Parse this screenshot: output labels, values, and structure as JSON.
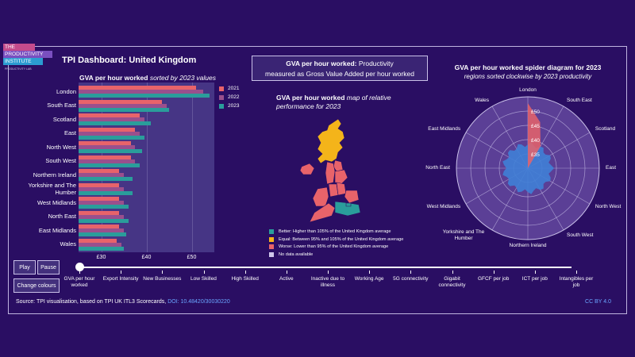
{
  "logo": {
    "line1": "THE",
    "line2": "PRODUCTIVITY",
    "line3": "INSTITUTE",
    "sub": "PRODUCTIVITY LAB"
  },
  "title": "TPI Dashboard: United Kingdom",
  "bar_panel": {
    "title_bold": "GVA per hour worked",
    "title_italic": "sorted by 2023 values"
  },
  "gva_box": {
    "bold": "GVA per hour worked:",
    "text1": " Productivity",
    "text2": "measured as Gross Value Added per hour worked"
  },
  "map_panel": {
    "title_bold": "GVA per hour worked",
    "title_italic1": " map of relative",
    "title_italic2": "performance for 2023"
  },
  "map_legend": [
    {
      "label": "Better: Higher than 105% of the United Kingdom average",
      "color": "#2a9d9b"
    },
    {
      "label": "Equal: Between 95% and 105% of the United Kingdom average",
      "color": "#f4b41a"
    },
    {
      "label": "Worse: Lower than 95% of the United Kingdom average",
      "color": "#e8636a"
    },
    {
      "label": "No data available",
      "color": "#cfc7ea"
    }
  ],
  "spider": {
    "title": "GVA per hour worked spider diagram for 2023",
    "subtitle": "regions sorted clockwise by 2023 productivity",
    "ring_labels": [
      "£50",
      "£45",
      "£40",
      "£35"
    ]
  },
  "buttons": {
    "play": "Play",
    "pause": "Pause",
    "change_colours": "Change colours"
  },
  "slider_steps": [
    "GVA per hour worked",
    "Export Intensity",
    "New Businesses",
    "Low Skilled",
    "High Skilled",
    "Active",
    "Inactive due to illness",
    "Working Age",
    "5G connectivity",
    "Gigabit connectivity",
    "GFCF per job",
    "ICT per job",
    "Intangibles per job"
  ],
  "slider_value": "GVA per hour worked",
  "source": {
    "text": "Source: TPI visualisation, based on TPI UK ITL3 Scorecards,",
    "doi": "DOI: 10.48420/30030220"
  },
  "license": "CC BY 4.0",
  "chart_data": {
    "type": "bar",
    "orientation": "horizontal",
    "categories": [
      "London",
      "South East",
      "Scotland",
      "East",
      "North West",
      "South West",
      "Northern Ireland",
      "Yorkshire and The Humber",
      "West Midlands",
      "North East",
      "East Midlands",
      "Wales"
    ],
    "series": [
      {
        "name": "2021",
        "color": "#e8636a",
        "values": [
          51,
          43.5,
          38.5,
          37.5,
          36.5,
          36.5,
          34,
          34,
          34,
          34,
          34,
          33.5
        ]
      },
      {
        "name": "2022",
        "color": "#9a4f8d",
        "values": [
          52.5,
          44.5,
          39.5,
          38.5,
          37.5,
          37.5,
          35,
          35,
          35,
          35,
          35,
          34.5
        ]
      },
      {
        "name": "2023",
        "color": "#2a9d9b",
        "values": [
          54,
          45,
          41,
          39.5,
          39,
          38.5,
          37,
          37,
          36,
          36,
          35.5,
          35
        ]
      }
    ],
    "xlim": [
      25,
      55
    ],
    "x_ticks": [
      "£30",
      "£40",
      "£50"
    ],
    "x_tick_values": [
      30,
      40,
      50
    ],
    "legend_position": "top-right"
  }
}
